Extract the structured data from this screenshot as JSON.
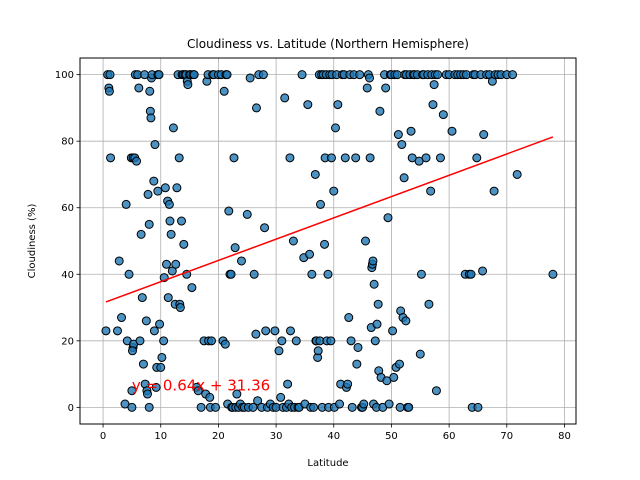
{
  "chart_data": {
    "type": "scatter",
    "title": "Cloudiness vs. Latitude (Northern Hemisphere)",
    "xlabel": "Latitude",
    "ylabel": "Cloudiness (%)",
    "xlim": [
      -4,
      82
    ],
    "ylim": [
      -5,
      105
    ],
    "xticks": [
      0,
      10,
      20,
      30,
      40,
      50,
      60,
      70,
      80
    ],
    "yticks": [
      0,
      20,
      40,
      60,
      80,
      100
    ],
    "grid": true,
    "colors": {
      "points": "#1f77b4",
      "point_edge": "#000000",
      "regression": "#ff0000",
      "annotation": "#ff0000"
    },
    "regression": {
      "slope": 0.64,
      "intercept": 31.36,
      "x_range": [
        0.5,
        78
      ],
      "equation_label": "y = 0.64x + 31.36",
      "label_position": [
        5,
        5
      ]
    },
    "points": [
      [
        0.8,
        100
      ],
      [
        1.2,
        100
      ],
      [
        1.0,
        96
      ],
      [
        1.1,
        95
      ],
      [
        1.3,
        75
      ],
      [
        0.5,
        23
      ],
      [
        2.5,
        23
      ],
      [
        2.8,
        44
      ],
      [
        3.2,
        27
      ],
      [
        3.8,
        1
      ],
      [
        4.0,
        61
      ],
      [
        4.2,
        20
      ],
      [
        4.5,
        40
      ],
      [
        4.9,
        75
      ],
      [
        5.0,
        5
      ],
      [
        5.2,
        18
      ],
      [
        5.0,
        0
      ],
      [
        5.3,
        19
      ],
      [
        5.1,
        17
      ],
      [
        5.2,
        75
      ],
      [
        5.5,
        75
      ],
      [
        5.8,
        74
      ],
      [
        5.6,
        100
      ],
      [
        6.0,
        100
      ],
      [
        6.2,
        96
      ],
      [
        6.4,
        20
      ],
      [
        6.6,
        52
      ],
      [
        6.8,
        33
      ],
      [
        7.0,
        13
      ],
      [
        7.2,
        100
      ],
      [
        7.3,
        7
      ],
      [
        7.5,
        26
      ],
      [
        7.6,
        5
      ],
      [
        7.7,
        4
      ],
      [
        7.8,
        64
      ],
      [
        8.0,
        55
      ],
      [
        8.1,
        95
      ],
      [
        8.2,
        89
      ],
      [
        8.3,
        87
      ],
      [
        8.4,
        99
      ],
      [
        8.0,
        0
      ],
      [
        8.5,
        100
      ],
      [
        8.8,
        68
      ],
      [
        9.0,
        79
      ],
      [
        8.9,
        23
      ],
      [
        9.2,
        6
      ],
      [
        9.3,
        12
      ],
      [
        9.5,
        100
      ],
      [
        9.5,
        65
      ],
      [
        9.7,
        100
      ],
      [
        9.8,
        25
      ],
      [
        10.0,
        12
      ],
      [
        10.2,
        15
      ],
      [
        10.5,
        20
      ],
      [
        10.6,
        39
      ],
      [
        10.8,
        66
      ],
      [
        11.0,
        43
      ],
      [
        11.2,
        62
      ],
      [
        11.3,
        33
      ],
      [
        11.5,
        61
      ],
      [
        11.6,
        56
      ],
      [
        11.8,
        52
      ],
      [
        12.0,
        41
      ],
      [
        12.2,
        84
      ],
      [
        12.5,
        31
      ],
      [
        12.6,
        43
      ],
      [
        12.8,
        66
      ],
      [
        13.0,
        100
      ],
      [
        13.2,
        75
      ],
      [
        13.3,
        31
      ],
      [
        13.4,
        30
      ],
      [
        13.6,
        56
      ],
      [
        13.7,
        100
      ],
      [
        13.9,
        100
      ],
      [
        14.0,
        49
      ],
      [
        14.2,
        100
      ],
      [
        14.4,
        100
      ],
      [
        14.5,
        40
      ],
      [
        14.6,
        98
      ],
      [
        14.7,
        97
      ],
      [
        15.0,
        100
      ],
      [
        15.2,
        100
      ],
      [
        15.4,
        36
      ],
      [
        15.6,
        100
      ],
      [
        15.8,
        100
      ],
      [
        16.2,
        6
      ],
      [
        16.5,
        5
      ],
      [
        17.0,
        0
      ],
      [
        17.5,
        20
      ],
      [
        17.8,
        4
      ],
      [
        18.0,
        98
      ],
      [
        18.2,
        100
      ],
      [
        18.3,
        20
      ],
      [
        18.5,
        3
      ],
      [
        18.6,
        0
      ],
      [
        18.8,
        20
      ],
      [
        19.0,
        100
      ],
      [
        19.2,
        100
      ],
      [
        19.5,
        0
      ],
      [
        20.0,
        100
      ],
      [
        20.5,
        100
      ],
      [
        20.8,
        20
      ],
      [
        21.0,
        95
      ],
      [
        21.2,
        19
      ],
      [
        21.3,
        100
      ],
      [
        21.5,
        100
      ],
      [
        21.6,
        1
      ],
      [
        21.8,
        59
      ],
      [
        22.0,
        40
      ],
      [
        22.2,
        40
      ],
      [
        22.3,
        0
      ],
      [
        22.5,
        0
      ],
      [
        22.7,
        75
      ],
      [
        22.9,
        48
      ],
      [
        23.0,
        0
      ],
      [
        23.2,
        4
      ],
      [
        23.5,
        0
      ],
      [
        23.8,
        1
      ],
      [
        24.0,
        44
      ],
      [
        24.2,
        0
      ],
      [
        24.5,
        0
      ],
      [
        25.0,
        58
      ],
      [
        25.2,
        0
      ],
      [
        25.5,
        99
      ],
      [
        26.0,
        0
      ],
      [
        26.2,
        40
      ],
      [
        26.5,
        22
      ],
      [
        26.6,
        90
      ],
      [
        26.8,
        2
      ],
      [
        27.0,
        100
      ],
      [
        27.5,
        0
      ],
      [
        27.8,
        100
      ],
      [
        28.0,
        54
      ],
      [
        28.2,
        23
      ],
      [
        28.5,
        0
      ],
      [
        29.0,
        1
      ],
      [
        29.5,
        0
      ],
      [
        29.8,
        23
      ],
      [
        30.0,
        0
      ],
      [
        30.5,
        17
      ],
      [
        30.8,
        3
      ],
      [
        31.0,
        20
      ],
      [
        31.2,
        0
      ],
      [
        31.5,
        93
      ],
      [
        31.8,
        0
      ],
      [
        32.0,
        7
      ],
      [
        32.2,
        1
      ],
      [
        32.4,
        75
      ],
      [
        32.5,
        23
      ],
      [
        32.7,
        0
      ],
      [
        33.0,
        50
      ],
      [
        33.2,
        0
      ],
      [
        33.5,
        20
      ],
      [
        33.8,
        0
      ],
      [
        34.0,
        0
      ],
      [
        34.5,
        100
      ],
      [
        34.8,
        45
      ],
      [
        35.0,
        1
      ],
      [
        35.5,
        91
      ],
      [
        35.8,
        46
      ],
      [
        36.0,
        0
      ],
      [
        36.2,
        40
      ],
      [
        36.5,
        0
      ],
      [
        36.8,
        70
      ],
      [
        36.9,
        20
      ],
      [
        37.0,
        20
      ],
      [
        37.2,
        15
      ],
      [
        37.3,
        17
      ],
      [
        37.5,
        100
      ],
      [
        37.6,
        20
      ],
      [
        37.7,
        61
      ],
      [
        37.9,
        100
      ],
      [
        38.0,
        0
      ],
      [
        38.2,
        100
      ],
      [
        38.4,
        49
      ],
      [
        38.5,
        75
      ],
      [
        38.7,
        100
      ],
      [
        38.8,
        20
      ],
      [
        39.0,
        40
      ],
      [
        39.1,
        0
      ],
      [
        39.3,
        100
      ],
      [
        39.5,
        20
      ],
      [
        39.6,
        75
      ],
      [
        39.7,
        100
      ],
      [
        40.0,
        65
      ],
      [
        40.1,
        0
      ],
      [
        40.3,
        84
      ],
      [
        40.5,
        100
      ],
      [
        40.7,
        91
      ],
      [
        41.0,
        1
      ],
      [
        41.2,
        7
      ],
      [
        41.5,
        100
      ],
      [
        41.8,
        100
      ],
      [
        42.0,
        75
      ],
      [
        42.2,
        6
      ],
      [
        42.4,
        7
      ],
      [
        42.6,
        27
      ],
      [
        42.8,
        100
      ],
      [
        43.0,
        20
      ],
      [
        43.2,
        0
      ],
      [
        43.5,
        100
      ],
      [
        43.8,
        75
      ],
      [
        44.0,
        13
      ],
      [
        44.2,
        18
      ],
      [
        44.5,
        100
      ],
      [
        44.8,
        0
      ],
      [
        45.0,
        0
      ],
      [
        45.2,
        1
      ],
      [
        45.5,
        50
      ],
      [
        45.8,
        96
      ],
      [
        46.0,
        100
      ],
      [
        46.2,
        99
      ],
      [
        46.3,
        75
      ],
      [
        46.5,
        24
      ],
      [
        46.6,
        42
      ],
      [
        46.7,
        43
      ],
      [
        46.8,
        44
      ],
      [
        46.9,
        1
      ],
      [
        47.0,
        37
      ],
      [
        47.2,
        20
      ],
      [
        47.4,
        0
      ],
      [
        47.5,
        25
      ],
      [
        47.7,
        31
      ],
      [
        47.8,
        11
      ],
      [
        48.0,
        89
      ],
      [
        48.2,
        9
      ],
      [
        48.5,
        0
      ],
      [
        48.8,
        100
      ],
      [
        49.0,
        96
      ],
      [
        49.2,
        8
      ],
      [
        49.4,
        57
      ],
      [
        49.6,
        1
      ],
      [
        49.8,
        100
      ],
      [
        50.0,
        100
      ],
      [
        50.2,
        23
      ],
      [
        50.4,
        9
      ],
      [
        50.6,
        100
      ],
      [
        50.8,
        12
      ],
      [
        51.0,
        100
      ],
      [
        51.2,
        82
      ],
      [
        51.4,
        13
      ],
      [
        51.5,
        0
      ],
      [
        51.6,
        29
      ],
      [
        51.8,
        79
      ],
      [
        52.0,
        27
      ],
      [
        52.2,
        69
      ],
      [
        52.3,
        100
      ],
      [
        52.5,
        26
      ],
      [
        52.6,
        100
      ],
      [
        52.8,
        0
      ],
      [
        53.0,
        0
      ],
      [
        53.2,
        100
      ],
      [
        53.4,
        83
      ],
      [
        53.6,
        75
      ],
      [
        53.8,
        100
      ],
      [
        54.0,
        100
      ],
      [
        54.5,
        100
      ],
      [
        54.8,
        74
      ],
      [
        55.0,
        16
      ],
      [
        55.2,
        40
      ],
      [
        55.4,
        100
      ],
      [
        55.6,
        100
      ],
      [
        56.0,
        75
      ],
      [
        56.3,
        100
      ],
      [
        56.5,
        31
      ],
      [
        56.8,
        65
      ],
      [
        57.0,
        100
      ],
      [
        57.2,
        91
      ],
      [
        57.4,
        97
      ],
      [
        57.6,
        100
      ],
      [
        57.8,
        5
      ],
      [
        58.0,
        100
      ],
      [
        58.5,
        75
      ],
      [
        59.0,
        88
      ],
      [
        59.5,
        100
      ],
      [
        60.0,
        100
      ],
      [
        60.5,
        83
      ],
      [
        61.0,
        100
      ],
      [
        61.5,
        100
      ],
      [
        62.0,
        100
      ],
      [
        62.5,
        100
      ],
      [
        62.8,
        40
      ],
      [
        63.0,
        100
      ],
      [
        63.5,
        40
      ],
      [
        63.8,
        40
      ],
      [
        64.0,
        0
      ],
      [
        64.2,
        100
      ],
      [
        64.5,
        100
      ],
      [
        64.8,
        75
      ],
      [
        65.0,
        0
      ],
      [
        65.5,
        100
      ],
      [
        65.8,
        41
      ],
      [
        66.0,
        82
      ],
      [
        66.5,
        100
      ],
      [
        67.0,
        100
      ],
      [
        67.5,
        98
      ],
      [
        67.8,
        65
      ],
      [
        68.0,
        100
      ],
      [
        68.5,
        100
      ],
      [
        69.0,
        100
      ],
      [
        70.0,
        100
      ],
      [
        71.0,
        100
      ],
      [
        71.8,
        70
      ],
      [
        78.0,
        40
      ]
    ]
  }
}
